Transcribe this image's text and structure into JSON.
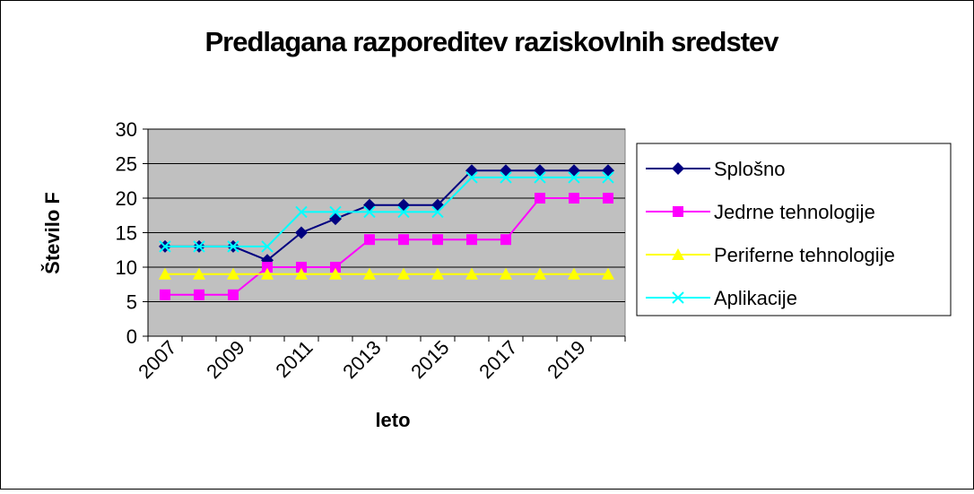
{
  "chart_data": {
    "type": "line",
    "title": "Predlagana razporeditev raziskovlnih sredstev",
    "x_label": "leto",
    "y_label": "Število F",
    "categories": [
      "2007",
      null,
      "2009",
      null,
      "2011",
      null,
      "2013",
      null,
      "2015",
      null,
      "2017",
      null,
      "2019",
      null
    ],
    "series": [
      {
        "name": "Splošno",
        "color": "#000080",
        "marker": "diamond",
        "values": [
          13,
          13,
          13,
          11,
          15,
          17,
          19,
          19,
          19,
          24,
          24,
          24,
          24,
          24
        ]
      },
      {
        "name": "Jedrne tehnologije",
        "color": "#FF00FF",
        "marker": "square",
        "values": [
          6,
          6,
          6,
          10,
          10,
          10,
          14,
          14,
          14,
          14,
          14,
          20,
          20,
          20
        ]
      },
      {
        "name": "Periferne tehnologije",
        "color": "#FFFF00",
        "marker": "triangle",
        "values": [
          9,
          9,
          9,
          9,
          9,
          9,
          9,
          9,
          9,
          9,
          9,
          9,
          9,
          9
        ]
      },
      {
        "name": "Aplikacije",
        "color": "#00FFFF",
        "marker": "x",
        "values": [
          13,
          13,
          13,
          13,
          18,
          18,
          18,
          18,
          18,
          23,
          23,
          23,
          23,
          23
        ]
      }
    ],
    "ylim": [
      0,
      30
    ],
    "yticks": [
      0,
      5,
      10,
      15,
      20,
      25,
      30
    ],
    "grid": true,
    "legend": "right",
    "plot_background": "#C0C0C0"
  }
}
